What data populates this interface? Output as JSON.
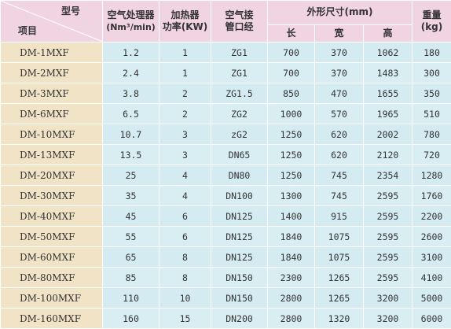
{
  "header": {
    "model_label": "型号",
    "item_label": "项目",
    "air_capacity_label": "空气处理器",
    "air_capacity_unit": "(Nm³/min)",
    "heating_label": "加热器",
    "heating_unit": "功率(KW)",
    "pipe_label": "空气接",
    "pipe_label2": "管口经",
    "dimensions_label": "外形尺寸(mm)",
    "length_label": "长",
    "width_label": "宽",
    "height_label": "高",
    "weight_label": "重量",
    "weight_unit": "(kg)"
  },
  "rows": [
    {
      "model": "DM-1MXF",
      "air": "1.2",
      "power": "1",
      "pipe": "ZG1",
      "length": "700",
      "width": "370",
      "height": "1062",
      "weight": "180"
    },
    {
      "model": "DM-2MXF",
      "air": "2.4",
      "power": "1",
      "pipe": "ZG1",
      "length": "700",
      "width": "370",
      "height": "1483",
      "weight": "300"
    },
    {
      "model": "DM-3MXF",
      "air": "3.8",
      "power": "2",
      "pipe": "ZG1.5",
      "length": "850",
      "width": "470",
      "height": "1655",
      "weight": "350"
    },
    {
      "model": "DM-6MXF",
      "air": "6.5",
      "power": "2",
      "pipe": "ZG2",
      "length": "1000",
      "width": "570",
      "height": "1965",
      "weight": "510"
    },
    {
      "model": "DM-10MXF",
      "air": "10.7",
      "power": "3",
      "pipe": "zG2",
      "length": "1250",
      "width": "620",
      "height": "2002",
      "weight": "780"
    },
    {
      "model": "DM-13MXF",
      "air": "13.5",
      "power": "3",
      "pipe": "DN65",
      "length": "1250",
      "width": "620",
      "height": "2120",
      "weight": "720"
    },
    {
      "model": "DM-20MXF",
      "air": "25",
      "power": "4",
      "pipe": "DN80",
      "length": "1250",
      "width": "745",
      "height": "2354",
      "weight": "1280"
    },
    {
      "model": "DM-30MXF",
      "air": "35",
      "power": "4",
      "pipe": "DN100",
      "length": "1300",
      "width": "745",
      "height": "2595",
      "weight": "1760"
    },
    {
      "model": "DM-40MXF",
      "air": "45",
      "power": "6",
      "pipe": "DN125",
      "length": "1400",
      "width": "915",
      "height": "2595",
      "weight": "2200"
    },
    {
      "model": "DM-50MXF",
      "air": "55",
      "power": "6",
      "pipe": "DN125",
      "length": "1840",
      "width": "1075",
      "height": "2595",
      "weight": "2600"
    },
    {
      "model": "DM-60MXF",
      "air": "65",
      "power": "8",
      "pipe": "DN125",
      "length": "1840",
      "width": "1075",
      "height": "2595",
      "weight": "3100"
    },
    {
      "model": "DM-80MXF",
      "air": "85",
      "power": "8",
      "pipe": "DN150",
      "length": "2300",
      "width": "1265",
      "height": "2595",
      "weight": "4100"
    },
    {
      "model": "DM-100MXF",
      "air": "110",
      "power": "10",
      "pipe": "DN150",
      "length": "2800",
      "width": "1265",
      "height": "3200",
      "weight": "5000"
    },
    {
      "model": "DM-160MXF",
      "air": "160",
      "power": "15",
      "pipe": "DN200",
      "length": "2800",
      "width": "1320",
      "height": "3200",
      "weight": "6000"
    }
  ]
}
